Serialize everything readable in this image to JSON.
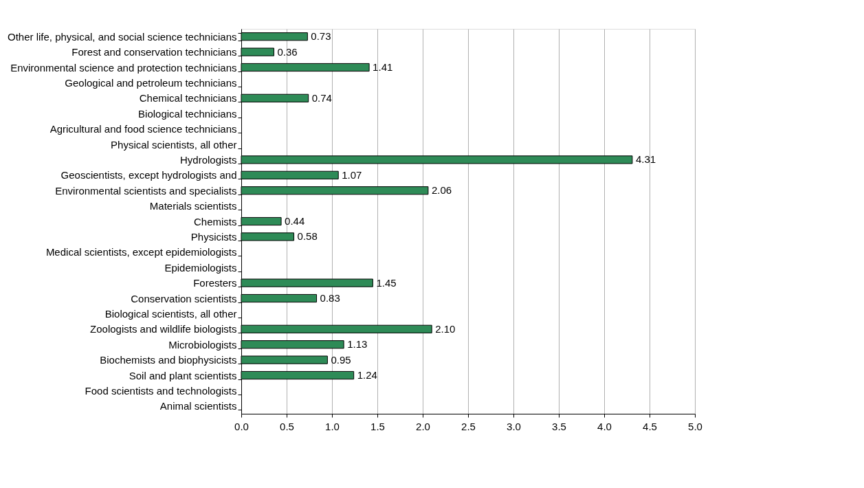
{
  "chart_data": {
    "type": "bar",
    "orientation": "horizontal",
    "categories": [
      "Other life, physical, and social science technicians",
      "Forest and conservation technicians",
      "Environmental science and protection technicians",
      "Geological and petroleum technicians",
      "Chemical technicians",
      "Biological technicians",
      "Agricultural and food science technicians",
      "Physical scientists, all other",
      "Hydrologists",
      "Geoscientists, except hydrologists and",
      "Environmental scientists and specialists",
      "Materials scientists",
      "Chemists",
      "Physicists",
      "Medical scientists, except epidemiologists",
      "Epidemiologists",
      "Foresters",
      "Conservation scientists",
      "Biological scientists, all other",
      "Zoologists and wildlife biologists",
      "Microbiologists",
      "Biochemists and biophysicists",
      "Soil and plant scientists",
      "Food scientists and technologists",
      "Animal scientists"
    ],
    "values": [
      0.73,
      0.36,
      1.41,
      null,
      0.74,
      null,
      null,
      null,
      4.31,
      1.07,
      2.06,
      null,
      0.44,
      0.58,
      null,
      null,
      1.45,
      0.83,
      null,
      2.1,
      1.13,
      0.95,
      1.24,
      null,
      null
    ],
    "value_labels": [
      "0.73",
      "0.36",
      "1.41",
      null,
      "0.74",
      null,
      null,
      null,
      "4.31",
      "1.07",
      "2.06",
      null,
      "0.44",
      "0.58",
      null,
      null,
      "1.45",
      "0.83",
      null,
      "2.10",
      "1.13",
      "0.95",
      "1.24",
      null,
      null
    ],
    "color": "#2e8b57",
    "xlim": [
      0,
      5
    ],
    "xticks": [
      {
        "value": 0,
        "label": "0.0"
      },
      {
        "value": 0.5,
        "label": "0.5"
      },
      {
        "value": 1,
        "label": "1.0"
      },
      {
        "value": 1.5,
        "label": "1.5"
      },
      {
        "value": 2,
        "label": "2.0"
      },
      {
        "value": 2.5,
        "label": "2.5"
      },
      {
        "value": 3,
        "label": "3.0"
      },
      {
        "value": 3.5,
        "label": "3.5"
      },
      {
        "value": 4,
        "label": "4.0"
      },
      {
        "value": 4.5,
        "label": "4.5"
      },
      {
        "value": 5,
        "label": "5.0"
      }
    ],
    "grid": "x"
  }
}
